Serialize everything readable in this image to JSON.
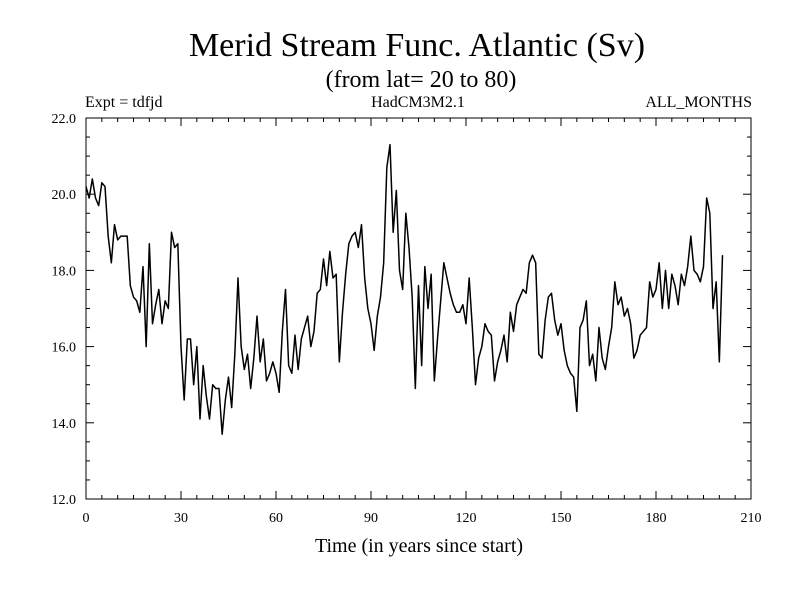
{
  "chart_data": {
    "type": "line",
    "title": "Merid Stream Func. Atlantic (Sv)",
    "subtitle": "(from lat= 20 to 80)",
    "experiment": "Expt = tdfjd",
    "model": "HadCM3M2.1",
    "period": "ALL_MONTHS",
    "xlabel": "Time (in years since start)",
    "ylabel": "",
    "xlim": [
      0,
      210
    ],
    "ylim": [
      12.0,
      22.0
    ],
    "x_ticks": [
      0,
      30,
      60,
      90,
      120,
      150,
      180,
      210
    ],
    "x_tick_labels": [
      "0",
      "30",
      "60",
      "90",
      "120",
      "150",
      "180",
      "210"
    ],
    "y_ticks": [
      12.0,
      14.0,
      16.0,
      18.0,
      20.0,
      22.0
    ],
    "y_tick_labels": [
      "12.0",
      "14.0",
      "16.0",
      "18.0",
      "20.0",
      "22.0"
    ],
    "grid": false,
    "series": [
      {
        "name": "Merid Stream Func. Atlantic",
        "x_start": 0,
        "x_step": 1,
        "values": [
          20.2,
          19.9,
          20.4,
          19.9,
          19.7,
          20.3,
          20.2,
          18.9,
          18.2,
          19.2,
          18.8,
          18.9,
          18.9,
          18.9,
          17.6,
          17.3,
          17.2,
          16.9,
          18.1,
          16.0,
          18.7,
          16.6,
          17.1,
          17.5,
          16.6,
          17.2,
          17.0,
          19.0,
          18.6,
          18.7,
          16.0,
          14.6,
          16.2,
          16.2,
          15.0,
          16.0,
          14.1,
          15.5,
          14.7,
          14.1,
          15.0,
          14.9,
          14.9,
          13.7,
          14.6,
          15.2,
          14.4,
          15.8,
          17.8,
          16.0,
          15.4,
          15.8,
          14.9,
          15.7,
          16.8,
          15.6,
          16.2,
          15.1,
          15.3,
          15.6,
          15.3,
          14.8,
          16.4,
          17.5,
          15.5,
          15.3,
          16.3,
          15.4,
          16.2,
          16.5,
          16.8,
          16.0,
          16.4,
          17.4,
          17.5,
          18.3,
          17.6,
          18.5,
          17.8,
          17.9,
          15.6,
          16.9,
          17.9,
          18.7,
          18.9,
          19.0,
          18.6,
          19.2,
          17.8,
          17.0,
          16.6,
          15.9,
          16.8,
          17.3,
          18.2,
          20.7,
          21.3,
          19.0,
          20.1,
          18.0,
          17.5,
          19.5,
          18.6,
          17.3,
          14.9,
          17.6,
          15.5,
          18.1,
          17.0,
          17.9,
          15.1,
          16.2,
          17.2,
          18.2,
          17.8,
          17.4,
          17.1,
          16.9,
          16.9,
          17.1,
          16.6,
          17.8,
          16.5,
          15.0,
          15.7,
          16.0,
          16.6,
          16.4,
          16.3,
          15.1,
          15.6,
          15.9,
          16.3,
          15.6,
          16.9,
          16.4,
          17.1,
          17.3,
          17.5,
          17.4,
          18.2,
          18.4,
          18.2,
          15.8,
          15.7,
          16.7,
          17.3,
          17.4,
          16.7,
          16.3,
          16.6,
          15.9,
          15.5,
          15.3,
          15.2,
          14.3,
          16.5,
          16.7,
          17.2,
          15.5,
          15.8,
          15.1,
          16.5,
          15.7,
          15.4,
          16.0,
          16.5,
          17.7,
          17.1,
          17.3,
          16.8,
          17.0,
          16.6,
          15.7,
          15.9,
          16.3,
          16.4,
          16.5,
          17.7,
          17.3,
          17.5,
          18.2,
          17.0,
          18.0,
          17.0,
          17.9,
          17.6,
          17.1,
          17.9,
          17.6,
          18.1,
          18.9,
          18.0,
          17.9,
          17.7,
          18.1,
          19.9,
          19.5,
          17.0,
          17.7,
          15.6,
          18.4
        ]
      }
    ]
  }
}
